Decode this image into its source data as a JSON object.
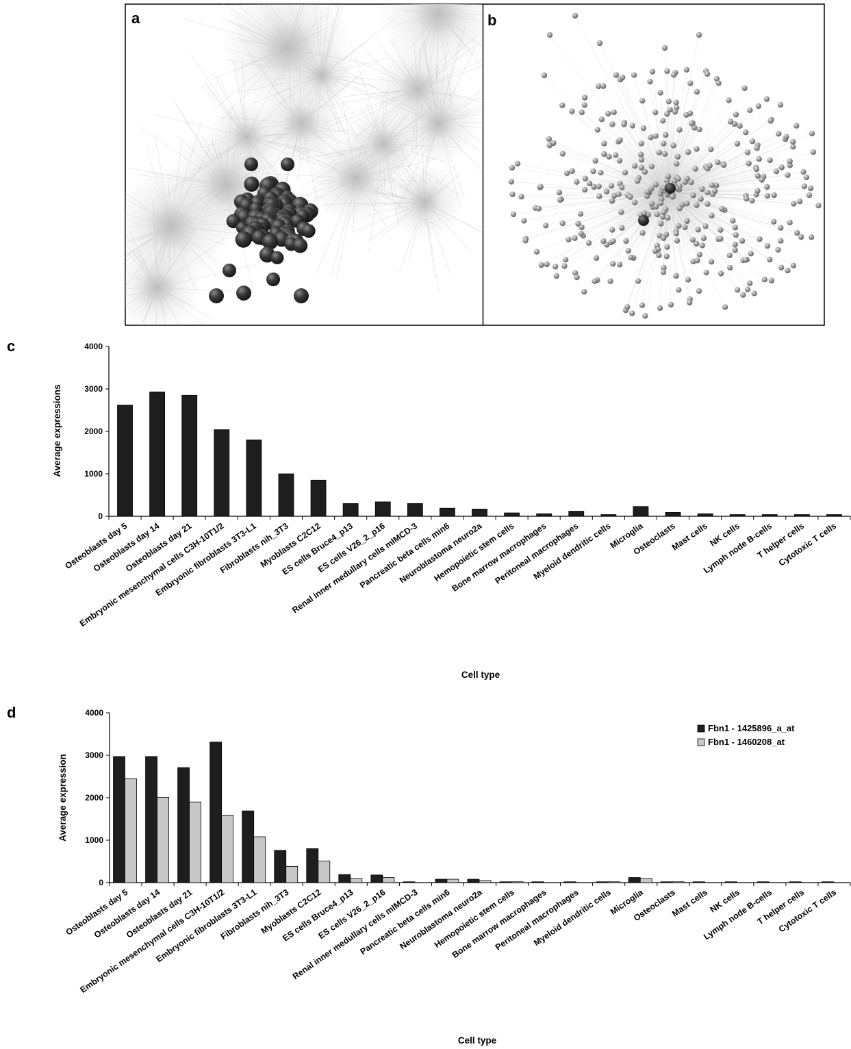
{
  "panels": {
    "a": "a",
    "b": "b",
    "c": "c",
    "d": "d"
  },
  "colors": {
    "dark_bar": "#1e1e1e",
    "light_bar": "#c8c8c8",
    "network_gray": "#c9c9c9",
    "node_dark": "#2b2b2b",
    "node_gray": "#8a8a8a"
  },
  "chart_data": [
    {
      "type": "bar",
      "panel": "c",
      "xlabel": "Cell type",
      "ylabel": "Average expressions",
      "ylim": [
        0,
        4000
      ],
      "yticks": [
        "0",
        "1000",
        "2000",
        "3000",
        "4000"
      ],
      "categories": [
        "Osteoblasts day 5",
        "Osteoblasts day 14",
        "Osteoblasts day 21",
        "Embryonic mesenchymal cells C3H-10T1/2",
        "Embryonic fibroblasts 3T3-L1",
        "Fibroblasts nih_3T3",
        "Myoblasts C2C12",
        "ES cells Bruce4_p13",
        "ES cells V26_2_p16",
        "Renal inner medullary cells mIMCD-3",
        "Pancreatic beta cells min6",
        "Neuroblastoma neuro2a",
        "Hemopoietic stem cells",
        "Bone marrow macrophages",
        "Peritoneal macrophages",
        "Myeloid dendritic cells",
        "Microglia",
        "Osteoclasts",
        "Mast cells",
        "NK cells",
        "Lymph node B-cells",
        "T helper cells",
        "Cytotoxic T cells"
      ],
      "series": [
        {
          "values": [
            2620,
            2930,
            2850,
            2040,
            1800,
            1000,
            850,
            300,
            340,
            300,
            190,
            170,
            80,
            60,
            120,
            40,
            230,
            90,
            60,
            40,
            40,
            40,
            40
          ]
        }
      ],
      "grid": false
    },
    {
      "type": "bar",
      "panel": "d",
      "xlabel": "Cell type",
      "ylabel": "Average expression",
      "ylim": [
        0,
        4000
      ],
      "yticks": [
        "0",
        "1000",
        "2000",
        "3000",
        "4000"
      ],
      "legend_position": "top-right",
      "categories": [
        "Osteoblasts day 5",
        "Osteoblasts day 14",
        "Osteoblasts day 21",
        "Embryonic mesenchymal cells C3H-10T1/2",
        "Embryonic fibroblasts 3T3-L1",
        "Fibroblasts nih_3T3",
        "Myoblasts C2C12",
        "ES cells Bruce4_p13",
        "ES cells V26_2_p16",
        "Renal inner medullary cells mIMCD-3",
        "Pancreatic beta cells min6",
        "Neuroblastoma neuro2a",
        "Hemopoietic stem cells",
        "Bone marrow macrophages",
        "Peritoneal macrophages",
        "Myeloid dendritic cells",
        "Microglia",
        "Osteoclasts",
        "Mast cells",
        "NK cells",
        "Lymph node B-cells",
        "T helper cells",
        "Cytotoxic T cells"
      ],
      "series": [
        {
          "name": "Fbn1 - 1425896_a_at",
          "color": "#1e1e1e",
          "values": [
            2970,
            2970,
            2710,
            3310,
            1690,
            760,
            800,
            190,
            180,
            20,
            80,
            80,
            20,
            20,
            20,
            20,
            120,
            20,
            20,
            20,
            20,
            20,
            20
          ]
        },
        {
          "name": "Fbn1 - 1460208_at",
          "color": "#c8c8c8",
          "values": [
            2450,
            2010,
            1900,
            1590,
            1080,
            380,
            510,
            100,
            120,
            0,
            80,
            50,
            20,
            0,
            0,
            20,
            100,
            20,
            0,
            0,
            0,
            0,
            0
          ]
        }
      ],
      "grid": false
    }
  ]
}
